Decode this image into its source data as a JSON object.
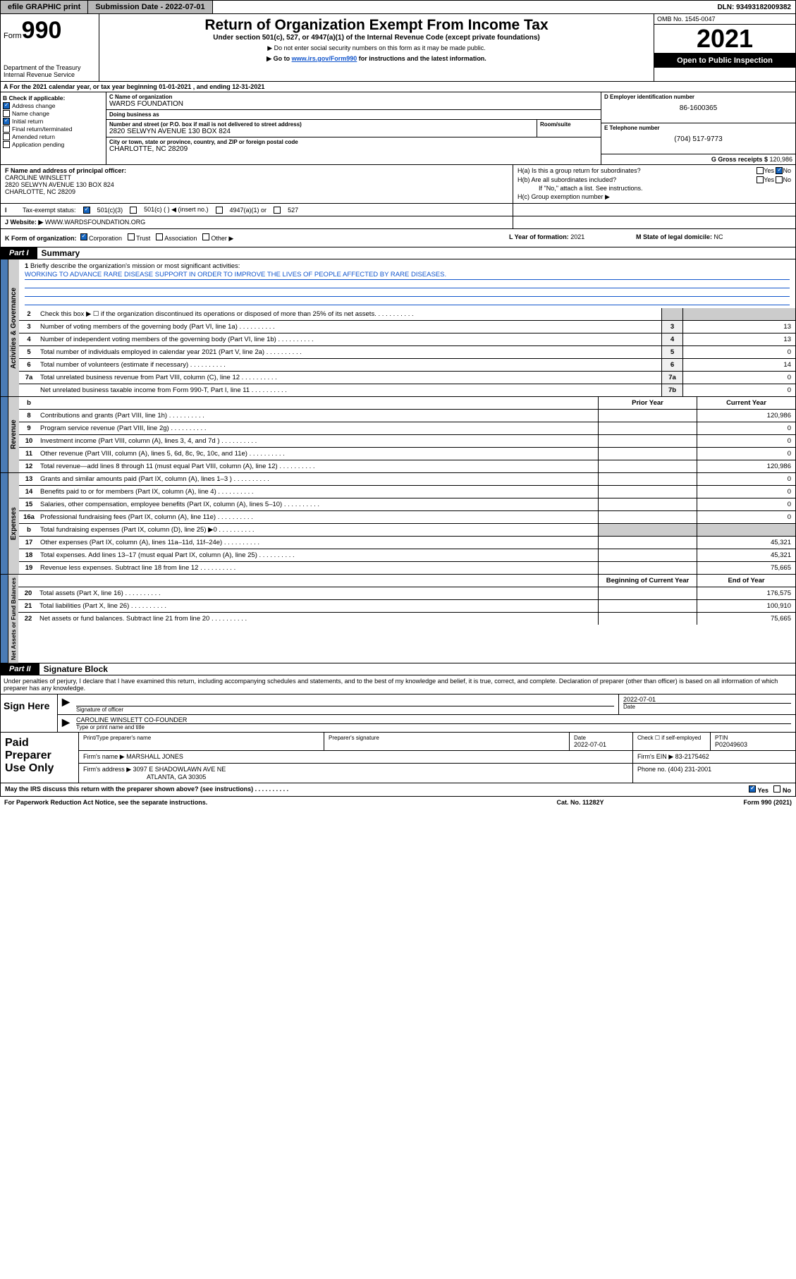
{
  "topbar": {
    "efile": "efile GRAPHIC print",
    "subdate_label": "Submission Date - ",
    "subdate": "2022-07-01",
    "dln_label": "DLN: ",
    "dln": "93493182009382"
  },
  "header": {
    "form_label": "Form",
    "form_no": "990",
    "dept": "Department of the Treasury\nInternal Revenue Service",
    "title": "Return of Organization Exempt From Income Tax",
    "sub1": "Under section 501(c), 527, or 4947(a)(1) of the Internal Revenue Code (except private foundations)",
    "sub2": "▶ Do not enter social security numbers on this form as it may be made public.",
    "sub3_a": "▶ Go to ",
    "sub3_link": "www.irs.gov/Form990",
    "sub3_b": " for instructions and the latest information.",
    "omb": "OMB No. 1545-0047",
    "year": "2021",
    "open": "Open to Public Inspection"
  },
  "A": {
    "text": "For the 2021 calendar year, or tax year beginning 01-01-2021   , and ending 12-31-2021"
  },
  "B": {
    "label": "B Check if applicable:",
    "items": [
      {
        "label": "Address change",
        "checked": true
      },
      {
        "label": "Name change",
        "checked": false
      },
      {
        "label": "Initial return",
        "checked": true
      },
      {
        "label": "Final return/terminated",
        "checked": false
      },
      {
        "label": "Amended return",
        "checked": false
      },
      {
        "label": "Application pending",
        "checked": false
      }
    ]
  },
  "C": {
    "name_label": "C Name of organization",
    "name": "WARDS FOUNDATION",
    "dba_label": "Doing business as",
    "dba": "",
    "addr_label": "Number and street (or P.O. box if mail is not delivered to street address)",
    "addr": "2820 SELWYN AVENUE 130 BOX 824",
    "room_label": "Room/suite",
    "city_label": "City or town, state or province, country, and ZIP or foreign postal code",
    "city": "CHARLOTTE, NC  28209"
  },
  "D": {
    "label": "D Employer identification number",
    "val": "86-1600365"
  },
  "E": {
    "label": "E Telephone number",
    "val": "(704) 517-9773"
  },
  "G": {
    "label": "G Gross receipts $ ",
    "val": "120,986"
  },
  "F": {
    "label": "F  Name and address of principal officer:",
    "name": "CAROLINE WINSLETT",
    "addr1": "2820 SELWYN AVENUE 130 BOX 824",
    "addr2": "CHARLOTTE, NC  28209"
  },
  "H": {
    "a": "H(a)  Is this a group return for subordinates?",
    "a_yes": "Yes",
    "a_no": "No",
    "b": "H(b)  Are all subordinates included?",
    "b_note": "If \"No,\" attach a list. See instructions.",
    "c": "H(c)  Group exemption number ▶"
  },
  "I": {
    "label": "Tax-exempt status:",
    "opts": [
      "501(c)(3)",
      "501(c) (  ) ◀ (insert no.)",
      "4947(a)(1) or",
      "527"
    ]
  },
  "J": {
    "label": "Website: ▶",
    "val": "WWW.WARDSFOUNDATION.ORG"
  },
  "K": {
    "label": "K Form of organization:",
    "opts": [
      "Corporation",
      "Trust",
      "Association",
      "Other ▶"
    ]
  },
  "L": {
    "label": "L Year of formation: ",
    "val": "2021"
  },
  "M": {
    "label": "M State of legal domicile: ",
    "val": "NC"
  },
  "part1": {
    "label": "Part I",
    "title": "Summary"
  },
  "mission": {
    "q": "Briefly describe the organization's mission or most significant activities:",
    "text": "WORKING TO ADVANCE RARE DISEASE SUPPORT IN ORDER TO IMPROVE THE LIVES OF PEOPLE AFFECTED BY RARE DISEASES."
  },
  "gov_lines": [
    {
      "n": "2",
      "txt": "Check this box ▶ ☐  if the organization discontinued its operations or disposed of more than 25% of its net assets.",
      "box": "",
      "val": ""
    },
    {
      "n": "3",
      "txt": "Number of voting members of the governing body (Part VI, line 1a)",
      "box": "3",
      "val": "13"
    },
    {
      "n": "4",
      "txt": "Number of independent voting members of the governing body (Part VI, line 1b)",
      "box": "4",
      "val": "13"
    },
    {
      "n": "5",
      "txt": "Total number of individuals employed in calendar year 2021 (Part V, line 2a)",
      "box": "5",
      "val": "0"
    },
    {
      "n": "6",
      "txt": "Total number of volunteers (estimate if necessary)",
      "box": "6",
      "val": "14"
    },
    {
      "n": "7a",
      "txt": "Total unrelated business revenue from Part VIII, column (C), line 12",
      "box": "7a",
      "val": "0"
    },
    {
      "n": "",
      "txt": "Net unrelated business taxable income from Form 990-T, Part I, line 11",
      "box": "7b",
      "val": "0"
    }
  ],
  "rev_hdr": {
    "prior": "Prior Year",
    "cur": "Current Year"
  },
  "rev_lines": [
    {
      "n": "8",
      "txt": "Contributions and grants (Part VIII, line 1h)",
      "p": "",
      "c": "120,986"
    },
    {
      "n": "9",
      "txt": "Program service revenue (Part VIII, line 2g)",
      "p": "",
      "c": "0"
    },
    {
      "n": "10",
      "txt": "Investment income (Part VIII, column (A), lines 3, 4, and 7d )",
      "p": "",
      "c": "0"
    },
    {
      "n": "11",
      "txt": "Other revenue (Part VIII, column (A), lines 5, 6d, 8c, 9c, 10c, and 11e)",
      "p": "",
      "c": "0"
    },
    {
      "n": "12",
      "txt": "Total revenue—add lines 8 through 11 (must equal Part VIII, column (A), line 12)",
      "p": "",
      "c": "120,986"
    }
  ],
  "exp_lines": [
    {
      "n": "13",
      "txt": "Grants and similar amounts paid (Part IX, column (A), lines 1–3 )",
      "p": "",
      "c": "0"
    },
    {
      "n": "14",
      "txt": "Benefits paid to or for members (Part IX, column (A), line 4)",
      "p": "",
      "c": "0"
    },
    {
      "n": "15",
      "txt": "Salaries, other compensation, employee benefits (Part IX, column (A), lines 5–10)",
      "p": "",
      "c": "0"
    },
    {
      "n": "16a",
      "txt": "Professional fundraising fees (Part IX, column (A), line 11e)",
      "p": "",
      "c": "0"
    },
    {
      "n": "b",
      "txt": "Total fundraising expenses (Part IX, column (D), line 25) ▶0",
      "p": "grey",
      "c": "grey"
    },
    {
      "n": "17",
      "txt": "Other expenses (Part IX, column (A), lines 11a–11d, 11f–24e)",
      "p": "",
      "c": "45,321"
    },
    {
      "n": "18",
      "txt": "Total expenses. Add lines 13–17 (must equal Part IX, column (A), line 25)",
      "p": "",
      "c": "45,321"
    },
    {
      "n": "19",
      "txt": "Revenue less expenses. Subtract line 18 from line 12",
      "p": "",
      "c": "75,665"
    }
  ],
  "na_hdr": {
    "beg": "Beginning of Current Year",
    "end": "End of Year"
  },
  "na_lines": [
    {
      "n": "20",
      "txt": "Total assets (Part X, line 16)",
      "p": "",
      "c": "176,575"
    },
    {
      "n": "21",
      "txt": "Total liabilities (Part X, line 26)",
      "p": "",
      "c": "100,910"
    },
    {
      "n": "22",
      "txt": "Net assets or fund balances. Subtract line 21 from line 20",
      "p": "",
      "c": "75,665"
    }
  ],
  "part2": {
    "label": "Part II",
    "title": "Signature Block"
  },
  "sig_note": "Under penalties of perjury, I declare that I have examined this return, including accompanying schedules and statements, and to the best of my knowledge and belief, it is true, correct, and complete. Declaration of preparer (other than officer) is based on all information of which preparer has any knowledge.",
  "sign": {
    "here": "Sign Here",
    "sig_label": "Signature of officer",
    "date": "2022-07-01",
    "date_label": "Date",
    "name": "CAROLINE WINSLETT CO-FOUNDER",
    "name_label": "Type or print name and title"
  },
  "prep": {
    "title": "Paid Preparer Use Only",
    "h1": "Print/Type preparer's name",
    "h2": "Preparer's signature",
    "h3": "Date",
    "h4": "Check ☐ if self-employed",
    "h5": "PTIN",
    "date": "2022-07-01",
    "ptin": "P02049603",
    "firm_label": "Firm's name   ▶",
    "firm": "MARSHALL JONES",
    "ein_label": "Firm's EIN ▶",
    "ein": "83-2175462",
    "addr_label": "Firm's address ▶",
    "addr1": "3097 E SHADOWLAWN AVE NE",
    "addr2": "ATLANTA, GA  30305",
    "phone_label": "Phone no. ",
    "phone": "(404) 231-2001"
  },
  "discuss": {
    "q": "May the IRS discuss this return with the preparer shown above? (see instructions)",
    "yes": "Yes",
    "no": "No"
  },
  "footer": {
    "pra": "For Paperwork Reduction Act Notice, see the separate instructions.",
    "cat": "Cat. No. 11282Y",
    "form": "Form 990 (2021)"
  },
  "vlabels": {
    "gov": "Activities & Governance",
    "rev": "Revenue",
    "exp": "Expenses",
    "na": "Net Assets or Fund Balances"
  }
}
